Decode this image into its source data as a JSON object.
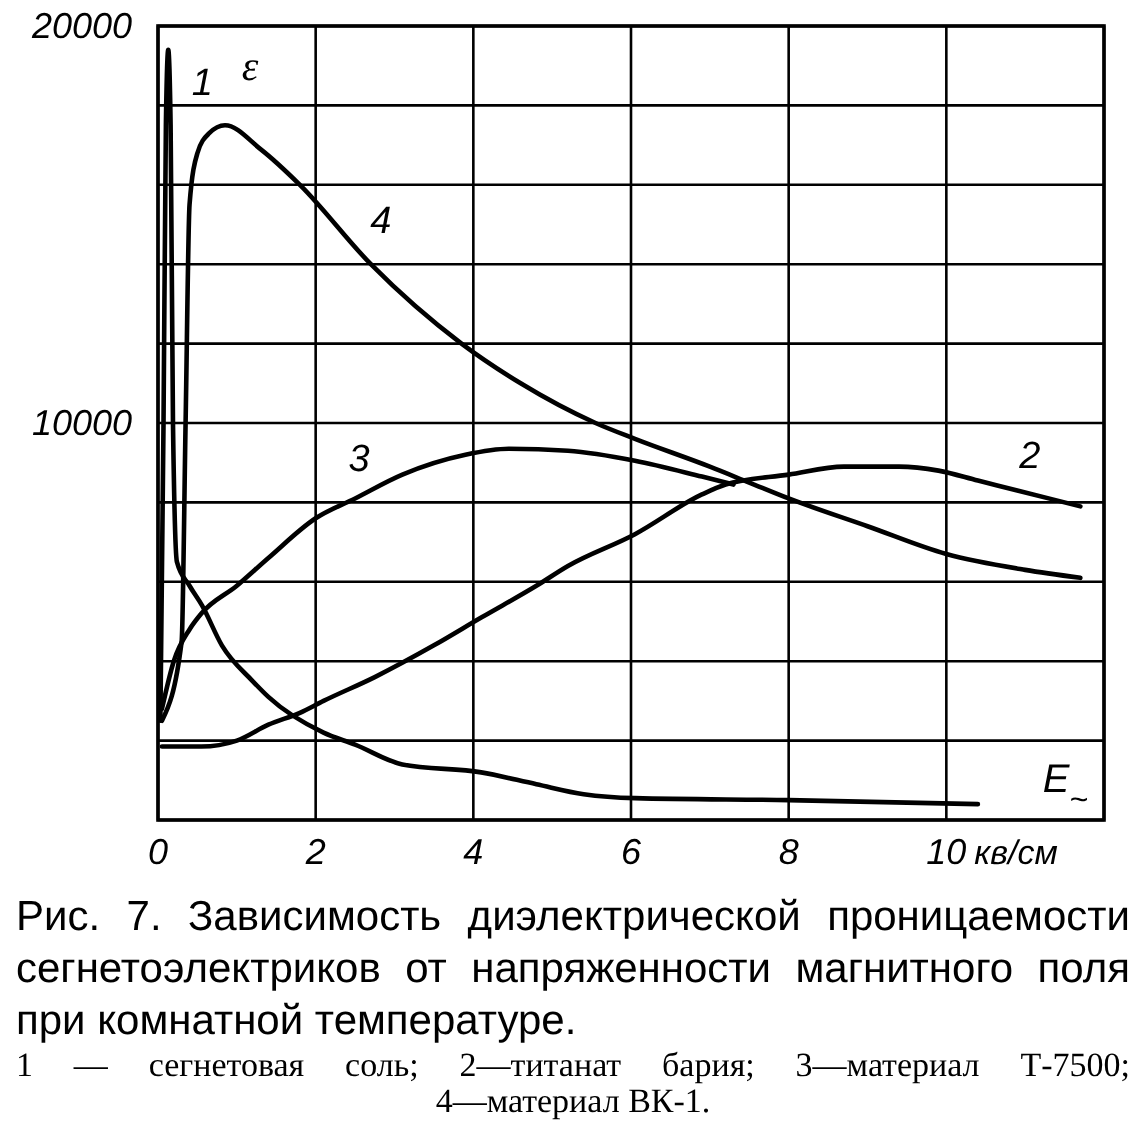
{
  "chart_data": {
    "type": "line",
    "title": "Рис. 7. Зависимость диэлектрической проницаемости сегнетоэлектриков от напряженности магнитного поля при комнатной температуре.",
    "subtitle": "1 — сегнетовая соль; 2—титанат бария; 3—материал Т-7500; 4—материал ВК-1.",
    "xlabel": "E$_{~}$",
    "ylabel": "ε",
    "annotations": [
      "кв/см"
    ],
    "xlim": [
      0,
      12
    ],
    "xticks": [
      0,
      2,
      4,
      6,
      8,
      10,
      {
        "value": 12,
        "label": null
      }
    ],
    "ylim": [
      0,
      20000
    ],
    "yticks": [
      {
        "value": 0,
        "label": null
      },
      {
        "value": 2000,
        "label": null
      },
      {
        "value": 4000,
        "label": null
      },
      {
        "value": 6000,
        "label": null
      },
      {
        "value": 8000,
        "label": null
      },
      10000,
      {
        "value": 12000,
        "label": null
      },
      {
        "value": 14000,
        "label": null
      },
      {
        "value": 16000,
        "label": null
      },
      {
        "value": 18000,
        "label": null
      },
      20000
    ],
    "grid": true,
    "series": [
      {
        "name": "1",
        "color": "#000000",
        "x": [
          0.03,
          0.07,
          0.1,
          0.13,
          0.16,
          0.19,
          0.24,
          0.4,
          0.56,
          0.81,
          1.2,
          1.4,
          2.1,
          2.5,
          3.1,
          4.1,
          4.8,
          5.4,
          6.05,
          8.0,
          10.4
        ],
        "values": [
          2500,
          10000,
          17500,
          19400,
          17500,
          10000,
          6500,
          5900,
          5400,
          4400,
          3500,
          3100,
          2200,
          1900,
          1400,
          1200,
          900,
          650,
          550,
          500,
          400
        ]
      },
      {
        "name": "2",
        "color": "#000000",
        "x": [
          0.05,
          0.55,
          1.0,
          1.4,
          1.8,
          2.1,
          2.75,
          3.5,
          4.1,
          4.8,
          5.2,
          6.05,
          6.9,
          7.2,
          8.0,
          8.7,
          9.4,
          9.9,
          10.4,
          10.9,
          11.7
        ],
        "values": [
          1850,
          1850,
          2000,
          2400,
          2700,
          3000,
          3600,
          4400,
          5100,
          5900,
          6400,
          7200,
          8200,
          8450,
          8700,
          8900,
          8900,
          8800,
          8550,
          8300,
          7900
        ]
      },
      {
        "name": "3",
        "color": "#000000",
        "x": [
          0.05,
          0.2,
          0.4,
          0.55,
          1.0,
          1.4,
          2.0,
          2.5,
          3.1,
          3.9,
          4.45,
          5.2,
          6.05,
          6.9,
          7.3
        ],
        "values": [
          2800,
          4000,
          4800,
          5200,
          5900,
          6600,
          7600,
          8100,
          8700,
          9200,
          9350,
          9300,
          9050,
          8650,
          8450
        ]
      },
      {
        "name": "4",
        "color": "#000000",
        "x": [
          0.05,
          0.3,
          0.35,
          0.4,
          0.5,
          0.65,
          0.85,
          1.3,
          1.8,
          2.7,
          3.85,
          4.6,
          5.55,
          6.05,
          7.0,
          7.5,
          8.0,
          9.0,
          10.0,
          11.0,
          11.7
        ],
        "values": [
          2500,
          4500,
          10000,
          15500,
          16800,
          17300,
          17500,
          16900,
          16000,
          14000,
          12000,
          11000,
          10000,
          9600,
          8900,
          8500,
          8100,
          7400,
          6700,
          6300,
          6100
        ]
      }
    ]
  }
}
